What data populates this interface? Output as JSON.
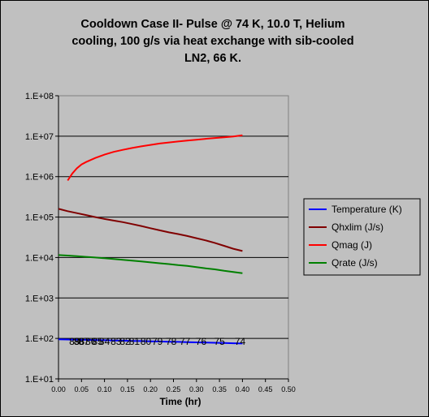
{
  "chart_data": {
    "type": "line",
    "title_lines": [
      "Cooldown Case II- Pulse @ 74 K, 10.0 T, Helium",
      "cooling, 100 g/s via heat exchange with sib-cooled",
      "LN2, 66 K."
    ],
    "xlabel": "Time (hr)",
    "ylabel": "",
    "xlim": [
      0,
      0.5
    ],
    "ylim": [
      10,
      100000000
    ],
    "y_scale": "log",
    "grid": "horizontal",
    "legend_position": "right",
    "x_ticks": [
      "0.00",
      "0.05",
      "0.10",
      "0.15",
      "0.20",
      "0.25",
      "0.30",
      "0.35",
      "0.40",
      "0.45",
      "0.50"
    ],
    "x_tick_values": [
      0,
      0.05,
      0.1,
      0.15,
      0.2,
      0.25,
      0.3,
      0.35,
      0.4,
      0.45,
      0.5
    ],
    "y_ticks": [
      "1.E+01",
      "1.E+02",
      "1.E+03",
      "1.E+04",
      "1.E+05",
      "1.E+06",
      "1.E+07",
      "1.E+08"
    ],
    "y_tick_values": [
      10,
      100,
      1000,
      10000,
      100000,
      1000000,
      10000000,
      100000000
    ],
    "series": [
      {
        "name": "Temperature (K)",
        "color": "#0000ff",
        "x": [
          0.0,
          0.02,
          0.04,
          0.06,
          0.08,
          0.1,
          0.12,
          0.14,
          0.16,
          0.18,
          0.2,
          0.22,
          0.24,
          0.26,
          0.28,
          0.3,
          0.32,
          0.34,
          0.36,
          0.38,
          0.4
        ],
        "y": [
          95,
          94,
          93,
          92,
          91,
          90,
          89,
          88,
          87,
          86,
          85,
          84,
          83,
          82,
          81,
          80,
          79,
          78,
          77,
          76,
          75
        ],
        "data_labels": [
          {
            "text": "89",
            "x": 0.035,
            "y": 87
          },
          {
            "text": "88",
            "x": 0.045,
            "y": 87
          },
          {
            "text": "87",
            "x": 0.055,
            "y": 87
          },
          {
            "text": "86",
            "x": 0.07,
            "y": 87
          },
          {
            "text": "85",
            "x": 0.085,
            "y": 87
          },
          {
            "text": "84",
            "x": 0.1,
            "y": 87
          },
          {
            "text": "83",
            "x": 0.125,
            "y": 87
          },
          {
            "text": "82",
            "x": 0.145,
            "y": 87
          },
          {
            "text": "81",
            "x": 0.165,
            "y": 87
          },
          {
            "text": "80",
            "x": 0.19,
            "y": 87
          },
          {
            "text": "79",
            "x": 0.215,
            "y": 87
          },
          {
            "text": "78",
            "x": 0.245,
            "y": 87
          },
          {
            "text": "77",
            "x": 0.275,
            "y": 87
          },
          {
            "text": "76",
            "x": 0.31,
            "y": 87
          },
          {
            "text": "75",
            "x": 0.35,
            "y": 87
          },
          {
            "text": "74",
            "x": 0.395,
            "y": 87
          }
        ]
      },
      {
        "name": "Qhxlim (J/s)",
        "color": "#800000",
        "x": [
          0.0,
          0.02,
          0.04,
          0.06,
          0.08,
          0.1,
          0.12,
          0.14,
          0.16,
          0.18,
          0.2,
          0.22,
          0.24,
          0.26,
          0.28,
          0.3,
          0.32,
          0.34,
          0.36,
          0.38,
          0.4
        ],
        "y": [
          160000,
          140000,
          125000,
          112000,
          100000,
          90000,
          82000,
          75000,
          67000,
          60000,
          53000,
          47000,
          42000,
          38000,
          34000,
          30000,
          26500,
          23000,
          19500,
          16500,
          14500
        ]
      },
      {
        "name": "Qmag (J)",
        "color": "#ff0000",
        "x": [
          0.02,
          0.03,
          0.04,
          0.05,
          0.06,
          0.08,
          0.1,
          0.12,
          0.14,
          0.16,
          0.18,
          0.2,
          0.22,
          0.24,
          0.26,
          0.28,
          0.3,
          0.32,
          0.34,
          0.36,
          0.38,
          0.4
        ],
        "y": [
          800000,
          1200000,
          1600000,
          2000000,
          2300000,
          2900000,
          3500000,
          4100000,
          4600000,
          5100000,
          5600000,
          6100000,
          6600000,
          7000000,
          7400000,
          7800000,
          8200000,
          8600000,
          9000000,
          9400000,
          9800000,
          10500000
        ]
      },
      {
        "name": "Qrate  (J/s)",
        "color": "#008000",
        "x": [
          0.0,
          0.02,
          0.04,
          0.06,
          0.08,
          0.1,
          0.12,
          0.14,
          0.16,
          0.18,
          0.2,
          0.22,
          0.24,
          0.26,
          0.28,
          0.3,
          0.32,
          0.34,
          0.36,
          0.38,
          0.4
        ],
        "y": [
          11500,
          11200,
          10800,
          10400,
          10000,
          9600,
          9200,
          8800,
          8400,
          8000,
          7600,
          7200,
          6900,
          6500,
          6200,
          5800,
          5400,
          5100,
          4700,
          4400,
          4100
        ]
      }
    ]
  }
}
